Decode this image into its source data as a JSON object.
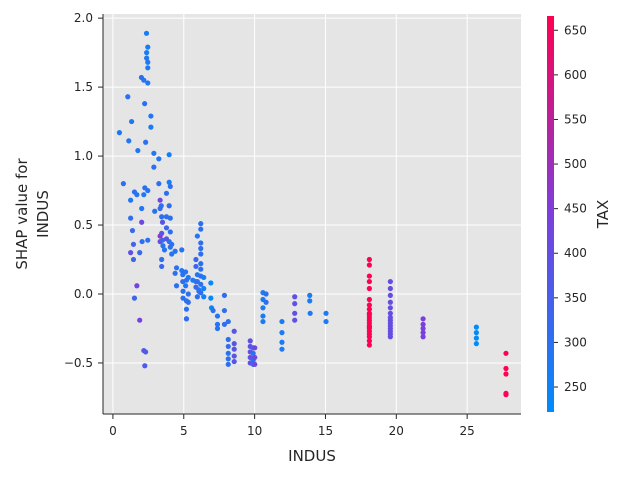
{
  "chart_data": {
    "type": "scatter",
    "title": "",
    "xlabel": "INDUS",
    "ylabel_lines": [
      "SHAP value for",
      "INDUS"
    ],
    "xlim": [
      -0.7,
      28.8
    ],
    "ylim": [
      -0.87,
      2.03
    ],
    "x_ticks": [
      0,
      5,
      10,
      15,
      20,
      25
    ],
    "x_tick_labels": [
      "0",
      "5",
      "10",
      "15",
      "20",
      "25"
    ],
    "y_ticks": [
      -0.5,
      0.0,
      0.5,
      1.0,
      1.5,
      2.0
    ],
    "y_tick_labels": [
      "−0.5",
      "0.0",
      "0.5",
      "1.0",
      "1.5",
      "2.0"
    ],
    "grid": true,
    "plot_background": "#e5e5e5",
    "colorbar": {
      "label": "TAX",
      "range": [
        222,
        666
      ],
      "ticks": [
        250,
        300,
        350,
        400,
        450,
        500,
        550,
        600,
        650
      ],
      "tick_labels": [
        "250",
        "300",
        "350",
        "400",
        "450",
        "500",
        "550",
        "600",
        "650"
      ],
      "color_low": "#008bfb",
      "color_mid": "#7c3fdc",
      "color_high": "#ff0052"
    },
    "points": [
      {
        "x": 0.46,
        "y": 1.17,
        "c": 280
      },
      {
        "x": 0.74,
        "y": 0.8,
        "c": 300
      },
      {
        "x": 1.05,
        "y": 1.43,
        "c": 300
      },
      {
        "x": 1.12,
        "y": 1.11,
        "c": 280
      },
      {
        "x": 1.25,
        "y": 0.68,
        "c": 280
      },
      {
        "x": 1.25,
        "y": 0.55,
        "c": 300
      },
      {
        "x": 1.25,
        "y": 0.3,
        "c": 400
      },
      {
        "x": 1.32,
        "y": 1.25,
        "c": 280
      },
      {
        "x": 1.38,
        "y": 0.46,
        "c": 320
      },
      {
        "x": 1.45,
        "y": 0.36,
        "c": 340
      },
      {
        "x": 1.45,
        "y": 0.25,
        "c": 330
      },
      {
        "x": 1.52,
        "y": 0.74,
        "c": 300
      },
      {
        "x": 1.52,
        "y": -0.03,
        "c": 330
      },
      {
        "x": 1.69,
        "y": 0.72,
        "c": 280
      },
      {
        "x": 1.69,
        "y": 0.06,
        "c": 430
      },
      {
        "x": 1.76,
        "y": 1.04,
        "c": 280
      },
      {
        "x": 1.89,
        "y": 0.3,
        "c": 330
      },
      {
        "x": 1.89,
        "y": -0.19,
        "c": 430
      },
      {
        "x": 2.01,
        "y": 1.57,
        "c": 300
      },
      {
        "x": 2.03,
        "y": 0.62,
        "c": 290
      },
      {
        "x": 2.03,
        "y": 0.52,
        "c": 420
      },
      {
        "x": 2.06,
        "y": 0.38,
        "c": 300
      },
      {
        "x": 2.18,
        "y": 1.55,
        "c": 290
      },
      {
        "x": 2.18,
        "y": 0.72,
        "c": 280
      },
      {
        "x": 2.18,
        "y": -0.41,
        "c": 380
      },
      {
        "x": 2.24,
        "y": 1.38,
        "c": 300
      },
      {
        "x": 2.25,
        "y": 0.77,
        "c": 300
      },
      {
        "x": 2.25,
        "y": -0.52,
        "c": 360
      },
      {
        "x": 2.31,
        "y": 1.1,
        "c": 300
      },
      {
        "x": 2.31,
        "y": -0.42,
        "c": 360
      },
      {
        "x": 2.37,
        "y": 1.89,
        "c": 260
      },
      {
        "x": 2.38,
        "y": 1.75,
        "c": 260
      },
      {
        "x": 2.38,
        "y": 1.71,
        "c": 280
      },
      {
        "x": 2.46,
        "y": 1.79,
        "c": 260
      },
      {
        "x": 2.46,
        "y": 1.68,
        "c": 280
      },
      {
        "x": 2.46,
        "y": 1.64,
        "c": 270
      },
      {
        "x": 2.46,
        "y": 1.53,
        "c": 280
      },
      {
        "x": 2.46,
        "y": 0.75,
        "c": 290
      },
      {
        "x": 2.46,
        "y": 0.39,
        "c": 300
      },
      {
        "x": 2.68,
        "y": 1.29,
        "c": 280
      },
      {
        "x": 2.68,
        "y": 1.21,
        "c": 270
      },
      {
        "x": 2.89,
        "y": 1.02,
        "c": 280
      },
      {
        "x": 2.89,
        "y": 0.92,
        "c": 300
      },
      {
        "x": 2.95,
        "y": 0.6,
        "c": 290
      },
      {
        "x": 3.24,
        "y": 0.98,
        "c": 280
      },
      {
        "x": 3.24,
        "y": 0.8,
        "c": 300
      },
      {
        "x": 3.33,
        "y": 0.68,
        "c": 420
      },
      {
        "x": 3.33,
        "y": 0.62,
        "c": 320
      },
      {
        "x": 3.33,
        "y": 0.42,
        "c": 470
      },
      {
        "x": 3.33,
        "y": 0.38,
        "c": 410
      },
      {
        "x": 3.41,
        "y": 0.64,
        "c": 300
      },
      {
        "x": 3.44,
        "y": 0.56,
        "c": 300
      },
      {
        "x": 3.44,
        "y": 0.44,
        "c": 390
      },
      {
        "x": 3.44,
        "y": 0.25,
        "c": 300
      },
      {
        "x": 3.44,
        "y": 0.2,
        "c": 320
      },
      {
        "x": 3.5,
        "y": 0.52,
        "c": 380
      },
      {
        "x": 3.5,
        "y": 0.39,
        "c": 330
      },
      {
        "x": 3.53,
        "y": 0.35,
        "c": 290
      },
      {
        "x": 3.64,
        "y": 0.32,
        "c": 290
      },
      {
        "x": 3.78,
        "y": 0.73,
        "c": 300
      },
      {
        "x": 3.78,
        "y": 0.56,
        "c": 300
      },
      {
        "x": 3.78,
        "y": 0.48,
        "c": 330
      },
      {
        "x": 3.78,
        "y": 0.4,
        "c": 380
      },
      {
        "x": 3.97,
        "y": 1.01,
        "c": 260
      },
      {
        "x": 3.97,
        "y": 0.81,
        "c": 270
      },
      {
        "x": 3.97,
        "y": 0.64,
        "c": 300
      },
      {
        "x": 3.97,
        "y": 0.38,
        "c": 300
      },
      {
        "x": 4.05,
        "y": 0.78,
        "c": 300
      },
      {
        "x": 4.05,
        "y": 0.55,
        "c": 300
      },
      {
        "x": 4.05,
        "y": 0.45,
        "c": 300
      },
      {
        "x": 4.05,
        "y": 0.34,
        "c": 300
      },
      {
        "x": 4.15,
        "y": 0.36,
        "c": 300
      },
      {
        "x": 4.15,
        "y": 0.29,
        "c": 290
      },
      {
        "x": 4.39,
        "y": 0.31,
        "c": 290
      },
      {
        "x": 4.39,
        "y": 0.15,
        "c": 300
      },
      {
        "x": 4.49,
        "y": 0.19,
        "c": 290
      },
      {
        "x": 4.49,
        "y": 0.06,
        "c": 300
      },
      {
        "x": 4.86,
        "y": 0.32,
        "c": 290
      },
      {
        "x": 4.86,
        "y": 0.17,
        "c": 280
      },
      {
        "x": 4.93,
        "y": 0.14,
        "c": 300
      },
      {
        "x": 4.93,
        "y": 0.09,
        "c": 300
      },
      {
        "x": 4.95,
        "y": 0.02,
        "c": 300
      },
      {
        "x": 4.95,
        "y": -0.03,
        "c": 300
      },
      {
        "x": 5.13,
        "y": 0.16,
        "c": 290
      },
      {
        "x": 5.13,
        "y": 0.06,
        "c": 280
      },
      {
        "x": 5.19,
        "y": 0.1,
        "c": 300
      },
      {
        "x": 5.19,
        "y": -0.05,
        "c": 300
      },
      {
        "x": 5.19,
        "y": -0.11,
        "c": 300
      },
      {
        "x": 5.19,
        "y": -0.18,
        "c": 300
      },
      {
        "x": 5.19,
        "y": -0.18,
        "c": 300
      },
      {
        "x": 5.32,
        "y": 0.12,
        "c": 290
      },
      {
        "x": 5.32,
        "y": -0.06,
        "c": 300
      },
      {
        "x": 5.32,
        "y": 0.0,
        "c": 300
      },
      {
        "x": 5.64,
        "y": 0.1,
        "c": 270
      },
      {
        "x": 5.86,
        "y": 0.25,
        "c": 330
      },
      {
        "x": 5.86,
        "y": 0.2,
        "c": 330
      },
      {
        "x": 5.86,
        "y": 0.09,
        "c": 300
      },
      {
        "x": 5.86,
        "y": 0.05,
        "c": 330
      },
      {
        "x": 5.96,
        "y": 0.42,
        "c": 280
      },
      {
        "x": 5.96,
        "y": 0.14,
        "c": 280
      },
      {
        "x": 5.96,
        "y": 0.09,
        "c": 300
      },
      {
        "x": 5.96,
        "y": -0.02,
        "c": 300
      },
      {
        "x": 6.06,
        "y": 0.03,
        "c": 290
      },
      {
        "x": 6.07,
        "y": 0.02,
        "c": 290
      },
      {
        "x": 6.2,
        "y": 0.51,
        "c": 300
      },
      {
        "x": 6.2,
        "y": 0.47,
        "c": 300
      },
      {
        "x": 6.2,
        "y": 0.37,
        "c": 300
      },
      {
        "x": 6.2,
        "y": 0.33,
        "c": 300
      },
      {
        "x": 6.2,
        "y": 0.29,
        "c": 300
      },
      {
        "x": 6.2,
        "y": 0.22,
        "c": 300
      },
      {
        "x": 6.2,
        "y": 0.18,
        "c": 300
      },
      {
        "x": 6.2,
        "y": 0.13,
        "c": 300
      },
      {
        "x": 6.2,
        "y": 0.07,
        "c": 300
      },
      {
        "x": 6.2,
        "y": 0.01,
        "c": 300
      },
      {
        "x": 6.41,
        "y": 0.12,
        "c": 250
      },
      {
        "x": 6.41,
        "y": 0.04,
        "c": 250
      },
      {
        "x": 6.41,
        "y": -0.02,
        "c": 250
      },
      {
        "x": 6.91,
        "y": 0.08,
        "c": 230
      },
      {
        "x": 6.91,
        "y": -0.03,
        "c": 230
      },
      {
        "x": 6.96,
        "y": -0.1,
        "c": 230
      },
      {
        "x": 7.07,
        "y": -0.12,
        "c": 300
      },
      {
        "x": 7.38,
        "y": -0.16,
        "c": 290
      },
      {
        "x": 7.38,
        "y": -0.22,
        "c": 290
      },
      {
        "x": 7.38,
        "y": -0.25,
        "c": 290
      },
      {
        "x": 7.87,
        "y": -0.01,
        "c": 310
      },
      {
        "x": 7.87,
        "y": -0.12,
        "c": 310
      },
      {
        "x": 7.87,
        "y": -0.22,
        "c": 310
      },
      {
        "x": 8.14,
        "y": -0.2,
        "c": 300
      },
      {
        "x": 8.14,
        "y": -0.33,
        "c": 300
      },
      {
        "x": 8.14,
        "y": -0.38,
        "c": 300
      },
      {
        "x": 8.14,
        "y": -0.43,
        "c": 300
      },
      {
        "x": 8.14,
        "y": -0.47,
        "c": 300
      },
      {
        "x": 8.14,
        "y": -0.51,
        "c": 300
      },
      {
        "x": 8.56,
        "y": -0.27,
        "c": 380
      },
      {
        "x": 8.56,
        "y": -0.36,
        "c": 380
      },
      {
        "x": 8.56,
        "y": -0.4,
        "c": 380
      },
      {
        "x": 8.56,
        "y": -0.45,
        "c": 380
      },
      {
        "x": 8.56,
        "y": -0.49,
        "c": 380
      },
      {
        "x": 9.69,
        "y": -0.34,
        "c": 390
      },
      {
        "x": 9.69,
        "y": -0.38,
        "c": 390
      },
      {
        "x": 9.69,
        "y": -0.42,
        "c": 390
      },
      {
        "x": 9.69,
        "y": -0.46,
        "c": 390
      },
      {
        "x": 9.69,
        "y": -0.5,
        "c": 390
      },
      {
        "x": 9.9,
        "y": -0.39,
        "c": 300
      },
      {
        "x": 9.9,
        "y": -0.43,
        "c": 300
      },
      {
        "x": 9.9,
        "y": -0.48,
        "c": 300
      },
      {
        "x": 9.9,
        "y": -0.51,
        "c": 300
      },
      {
        "x": 10.01,
        "y": -0.39,
        "c": 430
      },
      {
        "x": 10.01,
        "y": -0.46,
        "c": 430
      },
      {
        "x": 10.01,
        "y": -0.51,
        "c": 430
      },
      {
        "x": 10.59,
        "y": 0.01,
        "c": 270
      },
      {
        "x": 10.59,
        "y": -0.04,
        "c": 270
      },
      {
        "x": 10.59,
        "y": -0.1,
        "c": 270
      },
      {
        "x": 10.59,
        "y": -0.16,
        "c": 270
      },
      {
        "x": 10.59,
        "y": -0.2,
        "c": 270
      },
      {
        "x": 10.81,
        "y": 0.0,
        "c": 300
      },
      {
        "x": 10.81,
        "y": -0.06,
        "c": 300
      },
      {
        "x": 11.93,
        "y": -0.2,
        "c": 270
      },
      {
        "x": 11.93,
        "y": -0.28,
        "c": 270
      },
      {
        "x": 11.93,
        "y": -0.35,
        "c": 270
      },
      {
        "x": 11.93,
        "y": -0.4,
        "c": 270
      },
      {
        "x": 12.83,
        "y": -0.02,
        "c": 390
      },
      {
        "x": 12.83,
        "y": -0.07,
        "c": 390
      },
      {
        "x": 12.83,
        "y": -0.14,
        "c": 390
      },
      {
        "x": 12.83,
        "y": -0.19,
        "c": 390
      },
      {
        "x": 13.89,
        "y": -0.01,
        "c": 270
      },
      {
        "x": 13.89,
        "y": -0.05,
        "c": 270
      },
      {
        "x": 13.92,
        "y": -0.14,
        "c": 280
      },
      {
        "x": 15.04,
        "y": -0.14,
        "c": 270
      },
      {
        "x": 15.04,
        "y": -0.2,
        "c": 270
      },
      {
        "x": 18.1,
        "y": 0.25,
        "c": 666
      },
      {
        "x": 18.1,
        "y": 0.21,
        "c": 666
      },
      {
        "x": 18.1,
        "y": 0.13,
        "c": 666
      },
      {
        "x": 18.1,
        "y": 0.09,
        "c": 666
      },
      {
        "x": 18.1,
        "y": 0.04,
        "c": 666
      },
      {
        "x": 18.1,
        "y": -0.04,
        "c": 666
      },
      {
        "x": 18.1,
        "y": -0.08,
        "c": 666
      },
      {
        "x": 18.1,
        "y": -0.11,
        "c": 666
      },
      {
        "x": 18.1,
        "y": -0.14,
        "c": 666
      },
      {
        "x": 18.1,
        "y": -0.17,
        "c": 666
      },
      {
        "x": 18.1,
        "y": -0.19,
        "c": 666
      },
      {
        "x": 18.1,
        "y": -0.21,
        "c": 666
      },
      {
        "x": 18.1,
        "y": -0.23,
        "c": 666
      },
      {
        "x": 18.1,
        "y": -0.25,
        "c": 666
      },
      {
        "x": 18.1,
        "y": -0.27,
        "c": 666
      },
      {
        "x": 18.1,
        "y": -0.29,
        "c": 666
      },
      {
        "x": 18.1,
        "y": -0.31,
        "c": 666
      },
      {
        "x": 18.1,
        "y": -0.34,
        "c": 666
      },
      {
        "x": 18.1,
        "y": -0.37,
        "c": 666
      },
      {
        "x": 18.1,
        "y": -0.15,
        "c": 666
      },
      {
        "x": 18.1,
        "y": -0.24,
        "c": 666
      },
      {
        "x": 19.58,
        "y": 0.09,
        "c": 403
      },
      {
        "x": 19.58,
        "y": 0.04,
        "c": 403
      },
      {
        "x": 19.58,
        "y": -0.01,
        "c": 403
      },
      {
        "x": 19.58,
        "y": -0.06,
        "c": 403
      },
      {
        "x": 19.58,
        "y": -0.1,
        "c": 403
      },
      {
        "x": 19.58,
        "y": -0.14,
        "c": 403
      },
      {
        "x": 19.58,
        "y": -0.17,
        "c": 403
      },
      {
        "x": 19.58,
        "y": -0.19,
        "c": 403
      },
      {
        "x": 19.58,
        "y": -0.21,
        "c": 403
      },
      {
        "x": 19.58,
        "y": -0.23,
        "c": 403
      },
      {
        "x": 19.58,
        "y": -0.25,
        "c": 403
      },
      {
        "x": 19.58,
        "y": -0.27,
        "c": 403
      },
      {
        "x": 19.58,
        "y": -0.29,
        "c": 403
      },
      {
        "x": 19.58,
        "y": -0.31,
        "c": 403
      },
      {
        "x": 21.89,
        "y": -0.18,
        "c": 437
      },
      {
        "x": 21.89,
        "y": -0.22,
        "c": 437
      },
      {
        "x": 21.89,
        "y": -0.25,
        "c": 437
      },
      {
        "x": 21.89,
        "y": -0.28,
        "c": 437
      },
      {
        "x": 21.89,
        "y": -0.31,
        "c": 437
      },
      {
        "x": 25.65,
        "y": -0.24,
        "c": 188
      },
      {
        "x": 25.65,
        "y": -0.28,
        "c": 188
      },
      {
        "x": 25.65,
        "y": -0.32,
        "c": 188
      },
      {
        "x": 25.65,
        "y": -0.36,
        "c": 188
      },
      {
        "x": 27.74,
        "y": -0.43,
        "c": 711
      },
      {
        "x": 27.74,
        "y": -0.54,
        "c": 711
      },
      {
        "x": 27.74,
        "y": -0.58,
        "c": 711
      },
      {
        "x": 27.74,
        "y": -0.72,
        "c": 711
      },
      {
        "x": 27.74,
        "y": -0.73,
        "c": 711
      }
    ]
  }
}
